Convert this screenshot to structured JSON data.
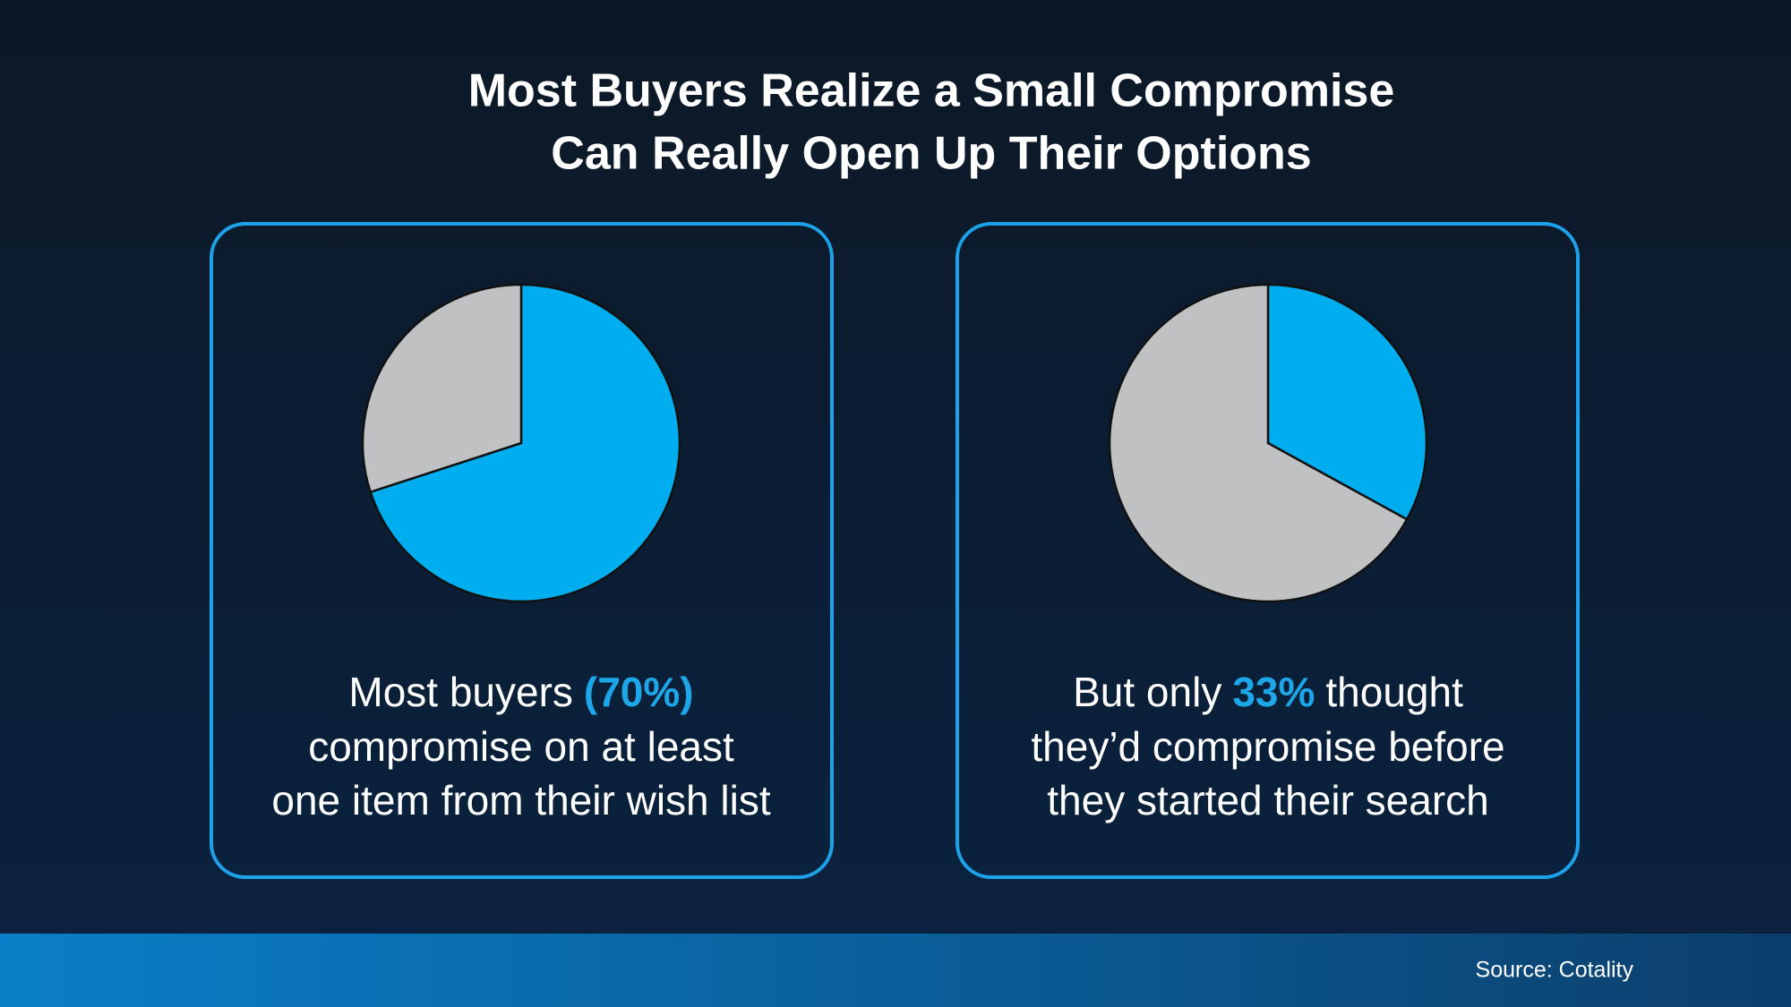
{
  "title": [
    "Most Buyers Realize a Small Compromise",
    "Can Really Open Up Their Options"
  ],
  "source": "Source: Cotality",
  "chart_data": [
    {
      "type": "pie",
      "values": [
        70,
        30
      ],
      "value_labels": [
        "(70%)",
        null
      ],
      "colors": [
        "#00aeef",
        "#bfc1c2"
      ],
      "caption": {
        "before": "Most buyers",
        "lines": [
          "compromise on at least",
          "one item from their wish list"
        ]
      }
    },
    {
      "type": "pie",
      "values": [
        33,
        67
      ],
      "value_labels": [
        "33%",
        null
      ],
      "colors": [
        "#00aeef",
        "#bfc1c2"
      ],
      "caption": {
        "before": "But only",
        "after": "thought",
        "lines": [
          "they’d compromise before",
          "they started their search"
        ]
      }
    }
  ]
}
